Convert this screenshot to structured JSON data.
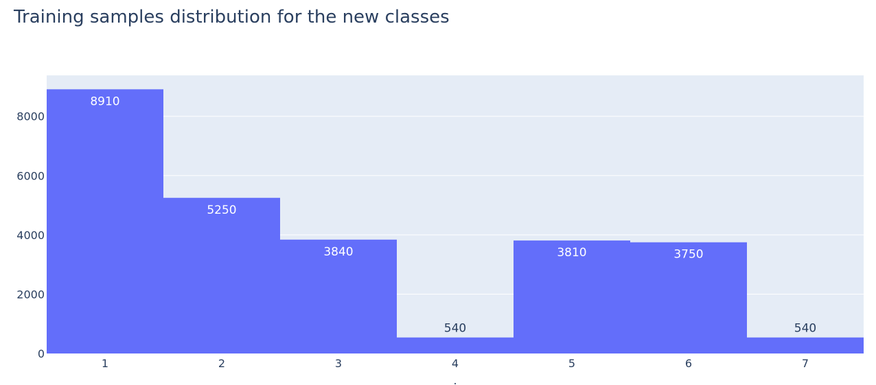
{
  "chart_data": {
    "type": "bar",
    "title": "Training samples distribution for the new classes",
    "xlabel": ".",
    "ylabel": "",
    "categories": [
      "1",
      "2",
      "3",
      "4",
      "5",
      "6",
      "7"
    ],
    "values": [
      8910,
      5250,
      3840,
      540,
      3810,
      3750,
      540
    ],
    "ylim": [
      0,
      9380
    ],
    "yticks": [
      0,
      2000,
      4000,
      6000,
      8000
    ],
    "grid": true,
    "colors": {
      "bar": "#636efa",
      "plot_bg": "#e5ecf6",
      "grid": "#ffffff",
      "text": "#2a3f5f"
    }
  }
}
